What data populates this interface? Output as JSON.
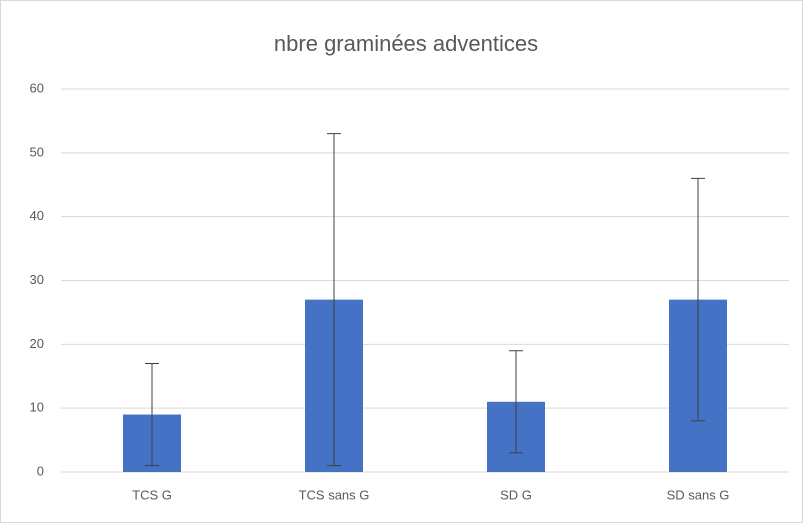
{
  "chart_data": {
    "type": "bar",
    "title": "nbre graminées adventices",
    "categories": [
      "TCS G",
      "TCS sans G",
      "SD G",
      "SD sans G"
    ],
    "values": [
      9,
      27,
      11,
      27
    ],
    "errors": [
      8,
      26,
      8,
      19
    ],
    "color": "#4472c4",
    "ylim": [
      0,
      60
    ],
    "yticks": [
      0,
      10,
      20,
      30,
      40,
      50,
      60
    ],
    "grid": true
  }
}
